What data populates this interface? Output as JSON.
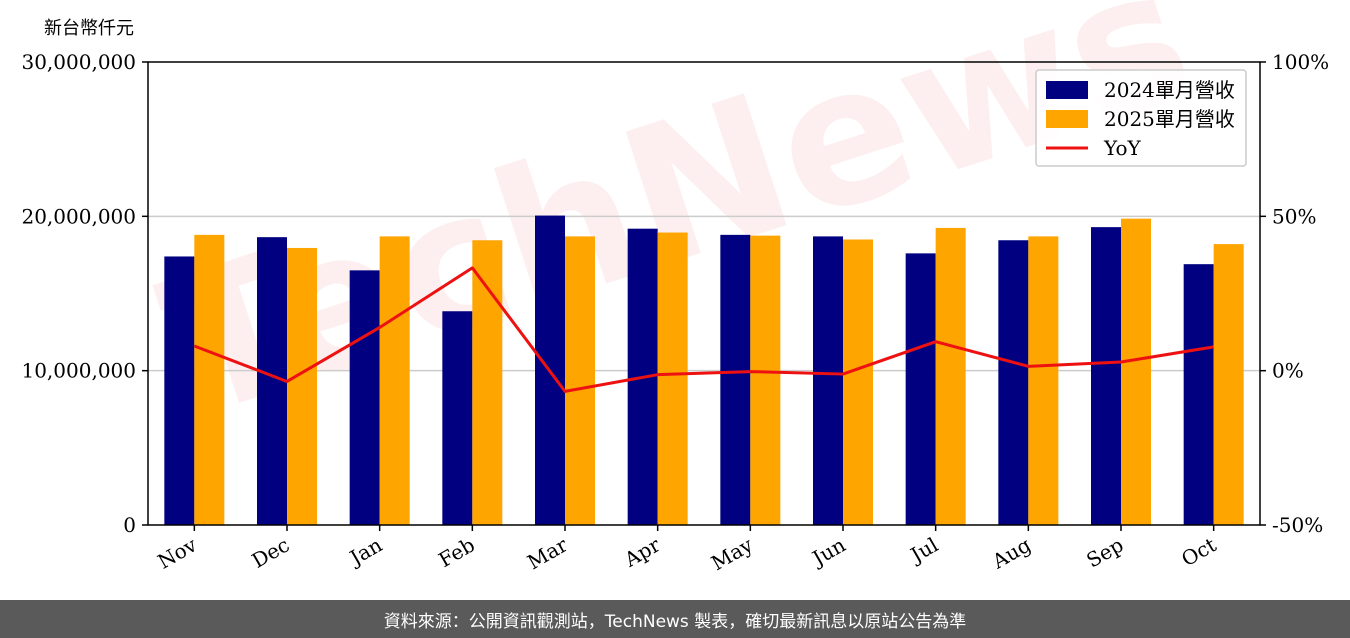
{
  "unit_label": "新台幣仟元",
  "footer": "資料來源：公開資訊觀測站，TechNews 製表，確切最新訊息以原站公告為準",
  "watermark": "TechNews",
  "chart_data": {
    "type": "bar",
    "categories": [
      "Nov",
      "Dec",
      "Jan",
      "Feb",
      "Mar",
      "Apr",
      "May",
      "Jun",
      "Jul",
      "Aug",
      "Sep",
      "Oct"
    ],
    "series": [
      {
        "name": "2024單月營收",
        "color": "#000080",
        "values": [
          17400000,
          18650000,
          16500000,
          13850000,
          20050000,
          19200000,
          18800000,
          18700000,
          17600000,
          18450000,
          19300000,
          16900000
        ]
      },
      {
        "name": "2025單月營收",
        "color": "#ffa500",
        "values": [
          18800000,
          17950000,
          18700000,
          18450000,
          18700000,
          18950000,
          18750000,
          18500000,
          19250000,
          18700000,
          19850000,
          18200000
        ]
      }
    ],
    "line_series": {
      "name": "YoY",
      "color": "#ee1111",
      "values": [
        8.0,
        -3.5,
        14.0,
        33.3,
        -6.7,
        -1.3,
        -0.3,
        -1.1,
        9.4,
        1.4,
        2.8,
        7.7
      ]
    },
    "y_left": {
      "ylim": [
        0,
        30000000
      ],
      "ticks": [
        "0",
        "10,000,000",
        "20,000,000",
        "30,000,000"
      ]
    },
    "y_right": {
      "ylim": [
        -50,
        100
      ],
      "ticks": [
        "-50%",
        "0%",
        "50%",
        "100%"
      ]
    },
    "grid": "horizontal",
    "legend_position": "top-right"
  }
}
